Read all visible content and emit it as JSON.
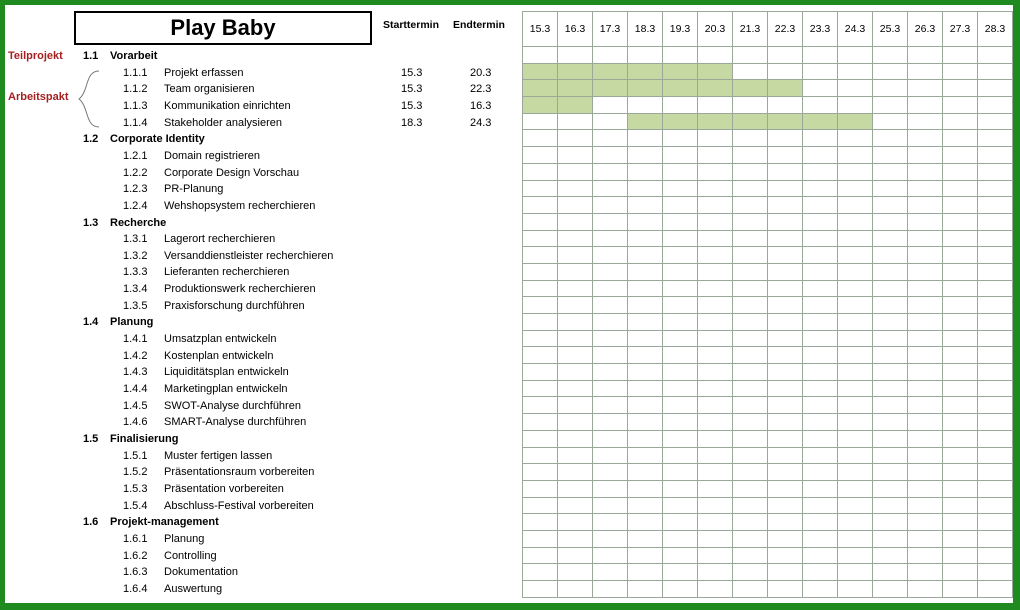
{
  "title": "Play Baby",
  "headers": {
    "start": "Starttermin",
    "end": "Endtermin"
  },
  "side_labels": {
    "teilprojekt": "Teilprojekt",
    "arbeitspakt": "Arbeitspakt"
  },
  "colors": {
    "frame": "#1f8a1f",
    "bar": "#c6d9a3",
    "annotation": "#a52020",
    "grid": "#9aa89a"
  },
  "dates": [
    "15.3",
    "16.3",
    "17.3",
    "18.3",
    "19.3",
    "20.3",
    "21.3",
    "22.3",
    "23.3",
    "24.3",
    "25.3",
    "26.3",
    "27.3",
    "28.3"
  ],
  "rows": [
    {
      "type": "sec",
      "num": "1.1",
      "label": "Vorarbeit"
    },
    {
      "type": "sub",
      "num": "1.1.1",
      "label": "Projekt erfassen",
      "start": "15.3",
      "end": "20.3"
    },
    {
      "type": "sub",
      "num": "1.1.2",
      "label": "Team organisieren",
      "start": "15.3",
      "end": "22.3"
    },
    {
      "type": "sub",
      "num": "1.1.3",
      "label": "Kommunikation einrichten",
      "start": "15.3",
      "end": "16.3"
    },
    {
      "type": "sub",
      "num": "1.1.4",
      "label": "Stakeholder analysieren",
      "start": "18.3",
      "end": "24.3"
    },
    {
      "type": "sec",
      "num": "1.2",
      "label": "Corporate Identity"
    },
    {
      "type": "sub",
      "num": "1.2.1",
      "label": "Domain registrieren"
    },
    {
      "type": "sub",
      "num": "1.2.2",
      "label": "Corporate Design Vorschau"
    },
    {
      "type": "sub",
      "num": "1.2.3",
      "label": "PR-Planung"
    },
    {
      "type": "sub",
      "num": "1.2.4",
      "label": "Wehshopsystem recherchieren"
    },
    {
      "type": "sec",
      "num": "1.3",
      "label": "Recherche"
    },
    {
      "type": "sub",
      "num": "1.3.1",
      "label": "Lagerort recherchieren"
    },
    {
      "type": "sub",
      "num": "1.3.2",
      "label": "Versanddienstleister recherchieren"
    },
    {
      "type": "sub",
      "num": "1.3.3",
      "label": "Lieferanten recherchieren"
    },
    {
      "type": "sub",
      "num": "1.3.4",
      "label": "Produktionswerk recherchieren"
    },
    {
      "type": "sub",
      "num": "1.3.5",
      "label": "Praxisforschung durchführen"
    },
    {
      "type": "sec",
      "num": "1.4",
      "label": "Planung"
    },
    {
      "type": "sub",
      "num": "1.4.1",
      "label": "Umsatzplan entwickeln"
    },
    {
      "type": "sub",
      "num": "1.4.2",
      "label": "Kostenplan entwickeln"
    },
    {
      "type": "sub",
      "num": "1.4.3",
      "label": "Liquiditätsplan entwickeln"
    },
    {
      "type": "sub",
      "num": "1.4.4",
      "label": "Marketingplan entwickeln"
    },
    {
      "type": "sub",
      "num": "1.4.5",
      "label": "SWOT-Analyse durchführen"
    },
    {
      "type": "sub",
      "num": "1.4.6",
      "label": "SMART-Analyse durchführen"
    },
    {
      "type": "sec",
      "num": "1.5",
      "label": "Finalisierung"
    },
    {
      "type": "sub",
      "num": "1.5.1",
      "label": "Muster fertigen lassen"
    },
    {
      "type": "sub",
      "num": "1.5.2",
      "label": "Präsentationsraum vorbereiten"
    },
    {
      "type": "sub",
      "num": "1.5.3",
      "label": "Präsentation vorbereiten"
    },
    {
      "type": "sub",
      "num": "1.5.4",
      "label": "Abschluss-Festival vorbereiten"
    },
    {
      "type": "sec",
      "num": "1.6",
      "label": "Projekt-management"
    },
    {
      "type": "sub",
      "num": "1.6.1",
      "label": "Planung"
    },
    {
      "type": "sub",
      "num": "1.6.2",
      "label": "Controlling"
    },
    {
      "type": "sub",
      "num": "1.6.3",
      "label": "Dokumentation"
    },
    {
      "type": "sub",
      "num": "1.6.4",
      "label": "Auswertung"
    }
  ]
}
